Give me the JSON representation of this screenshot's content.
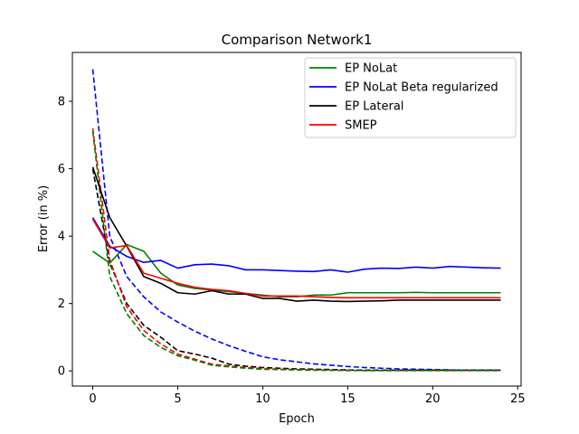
{
  "chart_data": {
    "type": "line",
    "title": "Comparison Network1",
    "xlabel": "Epoch",
    "ylabel": "Error (in %)",
    "xlim": [
      -1.2,
      25.2
    ],
    "ylim": [
      -0.45,
      9.45
    ],
    "xticks": [
      0,
      5,
      10,
      15,
      20,
      25
    ],
    "yticks": [
      0,
      2,
      4,
      6,
      8
    ],
    "legend_position": "upper-right",
    "x": [
      0,
      1,
      2,
      3,
      4,
      5,
      6,
      7,
      8,
      9,
      10,
      11,
      12,
      13,
      14,
      15,
      16,
      17,
      18,
      19,
      20,
      21,
      22,
      23,
      24
    ],
    "series": [
      {
        "name": "EP NoLat",
        "color": "#008000",
        "style": "solid",
        "values": [
          3.55,
          3.2,
          3.75,
          3.55,
          2.9,
          2.55,
          2.45,
          2.4,
          2.35,
          2.3,
          2.25,
          2.2,
          2.2,
          2.25,
          2.25,
          2.32,
          2.32,
          2.32,
          2.32,
          2.33,
          2.32,
          2.32,
          2.32,
          2.32,
          2.32
        ]
      },
      {
        "name": "EP NoLat Beta regularized",
        "color": "#0000ff",
        "style": "solid",
        "values": [
          4.55,
          3.7,
          3.4,
          3.22,
          3.28,
          3.05,
          3.15,
          3.17,
          3.12,
          3.0,
          3.0,
          2.98,
          2.96,
          2.95,
          3.0,
          2.93,
          3.02,
          3.05,
          3.04,
          3.08,
          3.05,
          3.1,
          3.08,
          3.06,
          3.05
        ]
      },
      {
        "name": "EP Lateral",
        "color": "#000000",
        "style": "solid",
        "values": [
          6.05,
          4.55,
          3.7,
          2.8,
          2.6,
          2.32,
          2.28,
          2.38,
          2.28,
          2.28,
          2.15,
          2.15,
          2.07,
          2.1,
          2.07,
          2.06,
          2.07,
          2.08,
          2.1,
          2.1,
          2.1,
          2.1,
          2.1,
          2.1,
          2.1
        ]
      },
      {
        "name": "SMEP",
        "color": "#ff0000",
        "style": "solid",
        "values": [
          4.5,
          3.65,
          3.72,
          2.9,
          2.75,
          2.6,
          2.48,
          2.42,
          2.38,
          2.3,
          2.22,
          2.22,
          2.22,
          2.2,
          2.18,
          2.17,
          2.17,
          2.17,
          2.17,
          2.17,
          2.17,
          2.17,
          2.17,
          2.17,
          2.17
        ]
      },
      {
        "color": "#0000ff",
        "style": "dashed",
        "values": [
          8.95,
          4.0,
          2.8,
          2.2,
          1.75,
          1.45,
          1.18,
          0.95,
          0.75,
          0.58,
          0.42,
          0.33,
          0.27,
          0.21,
          0.17,
          0.13,
          0.1,
          0.08,
          0.06,
          0.05,
          0.04,
          0.03,
          0.02,
          0.02,
          0.02
        ]
      },
      {
        "color": "#000000",
        "style": "dashed",
        "values": [
          6.0,
          3.2,
          2.0,
          1.35,
          1.0,
          0.6,
          0.5,
          0.38,
          0.2,
          0.14,
          0.1,
          0.08,
          0.06,
          0.05,
          0.04,
          0.03,
          0.02,
          0.02,
          0.02,
          0.02,
          0.02,
          0.02,
          0.02,
          0.02,
          0.02
        ]
      },
      {
        "color": "#ff0000",
        "style": "dashed",
        "values": [
          7.2,
          3.3,
          1.9,
          1.2,
          0.8,
          0.5,
          0.35,
          0.2,
          0.15,
          0.1,
          0.07,
          0.05,
          0.04,
          0.03,
          0.02,
          0.02,
          0.01,
          0.01,
          0.01,
          0.01,
          0.01,
          0.01,
          0.01,
          0.01,
          0.01
        ]
      },
      {
        "color": "#008000",
        "style": "dashed",
        "values": [
          7.1,
          2.8,
          1.7,
          1.05,
          0.7,
          0.45,
          0.32,
          0.17,
          0.12,
          0.08,
          0.05,
          0.04,
          0.03,
          0.02,
          0.02,
          0.01,
          0.01,
          0.01,
          0.01,
          0.01,
          0.01,
          0.01,
          0.01,
          0.01,
          0.01
        ]
      }
    ]
  }
}
